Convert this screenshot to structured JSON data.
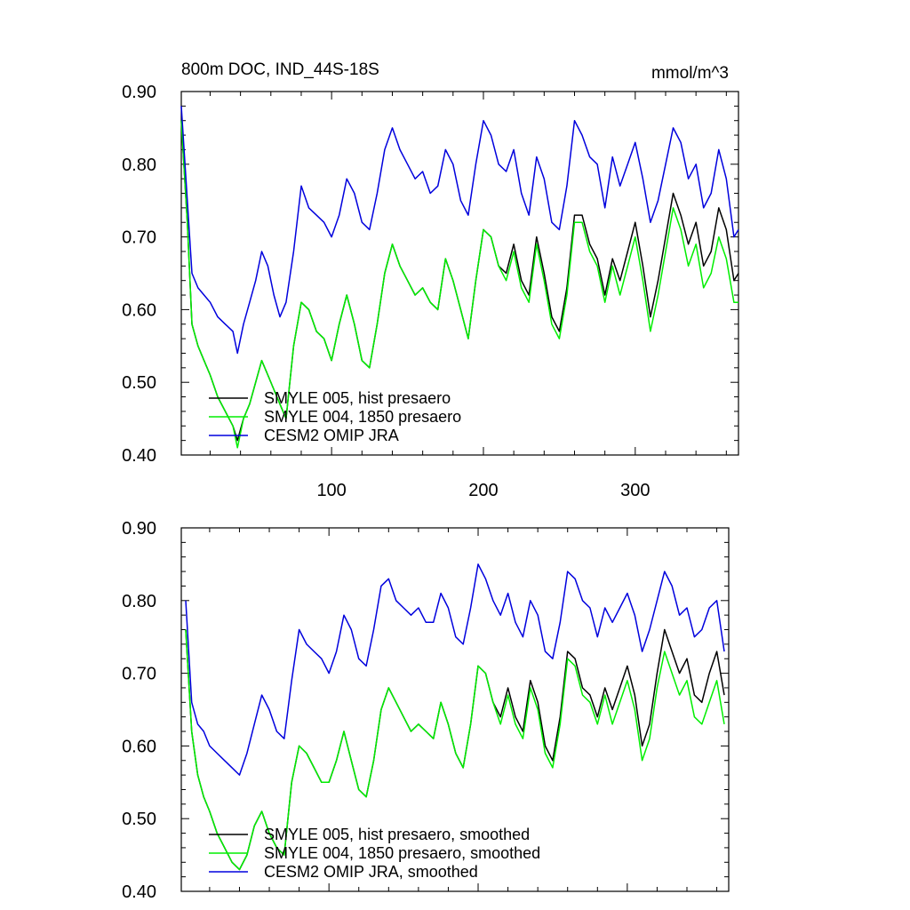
{
  "title_left": "800m DOC, IND_44S-18S",
  "title_right": "mmol/m^3",
  "colors": {
    "smyle005": "#000000",
    "smyle004": "#00ee00",
    "omip": "#0000dd"
  },
  "chart_data": [
    {
      "type": "line",
      "ylim": [
        0.4,
        0.9
      ],
      "xlim": [
        1,
        368
      ],
      "yticks": [
        "0.40",
        "0.50",
        "0.60",
        "0.70",
        "0.80",
        "0.90"
      ],
      "xticks": [
        "100",
        "200",
        "300"
      ],
      "legend_position": "lower-left",
      "series": [
        {
          "name": "SMYLE 005, hist presaero",
          "key": "smyle005",
          "x": [
            1,
            5,
            8,
            12,
            16,
            20,
            25,
            30,
            35,
            38,
            42,
            46,
            50,
            54,
            58,
            62,
            66,
            70,
            75,
            80,
            85,
            90,
            95,
            100,
            105,
            110,
            115,
            120,
            125,
            130,
            135,
            140,
            145,
            150,
            155,
            160,
            165,
            170,
            175,
            180,
            185,
            190,
            195,
            200,
            205,
            210,
            215,
            220,
            225,
            230,
            235,
            240,
            245,
            250,
            255,
            260,
            265,
            270,
            275,
            280,
            285,
            290,
            295,
            300,
            305,
            310,
            315,
            320,
            325,
            330,
            335,
            340,
            345,
            350,
            355,
            360,
            365,
            368
          ],
          "y": [
            0.86,
            0.72,
            0.58,
            0.55,
            0.53,
            0.51,
            0.48,
            0.46,
            0.44,
            0.42,
            0.45,
            0.47,
            0.5,
            0.53,
            0.51,
            0.49,
            0.47,
            0.45,
            0.55,
            0.61,
            0.6,
            0.57,
            0.56,
            0.53,
            0.58,
            0.62,
            0.58,
            0.53,
            0.52,
            0.58,
            0.65,
            0.69,
            0.66,
            0.64,
            0.62,
            0.63,
            0.61,
            0.6,
            0.67,
            0.64,
            0.6,
            0.56,
            0.64,
            0.71,
            0.7,
            0.66,
            0.65,
            0.69,
            0.64,
            0.62,
            0.7,
            0.65,
            0.59,
            0.57,
            0.63,
            0.73,
            0.73,
            0.69,
            0.67,
            0.62,
            0.67,
            0.64,
            0.68,
            0.72,
            0.66,
            0.59,
            0.64,
            0.7,
            0.76,
            0.73,
            0.69,
            0.72,
            0.66,
            0.68,
            0.74,
            0.71,
            0.64,
            0.65
          ]
        },
        {
          "name": "SMYLE 004, 1850 presaero",
          "key": "smyle004",
          "x": [
            1,
            5,
            8,
            12,
            16,
            20,
            25,
            30,
            35,
            38,
            42,
            46,
            50,
            54,
            58,
            62,
            66,
            70,
            75,
            80,
            85,
            90,
            95,
            100,
            105,
            110,
            115,
            120,
            125,
            130,
            135,
            140,
            145,
            150,
            155,
            160,
            165,
            170,
            175,
            180,
            185,
            190,
            195,
            200,
            205,
            210,
            215,
            220,
            225,
            230,
            235,
            240,
            245,
            250,
            255,
            260,
            265,
            270,
            275,
            280,
            285,
            290,
            295,
            300,
            305,
            310,
            315,
            320,
            325,
            330,
            335,
            340,
            345,
            350,
            355,
            360,
            365,
            368
          ],
          "y": [
            0.86,
            0.72,
            0.58,
            0.55,
            0.53,
            0.51,
            0.48,
            0.46,
            0.44,
            0.41,
            0.45,
            0.47,
            0.5,
            0.53,
            0.51,
            0.49,
            0.47,
            0.45,
            0.55,
            0.61,
            0.6,
            0.57,
            0.56,
            0.53,
            0.58,
            0.62,
            0.58,
            0.53,
            0.52,
            0.58,
            0.65,
            0.69,
            0.66,
            0.64,
            0.62,
            0.63,
            0.61,
            0.6,
            0.67,
            0.64,
            0.6,
            0.56,
            0.64,
            0.71,
            0.7,
            0.66,
            0.64,
            0.68,
            0.63,
            0.61,
            0.69,
            0.64,
            0.58,
            0.56,
            0.62,
            0.72,
            0.72,
            0.68,
            0.66,
            0.61,
            0.66,
            0.62,
            0.66,
            0.7,
            0.64,
            0.57,
            0.62,
            0.68,
            0.74,
            0.71,
            0.66,
            0.69,
            0.63,
            0.65,
            0.7,
            0.67,
            0.61,
            0.61
          ]
        },
        {
          "name": "CESM2 OMIP JRA",
          "key": "omip",
          "x": [
            1,
            5,
            8,
            12,
            16,
            20,
            25,
            30,
            35,
            38,
            42,
            46,
            50,
            54,
            58,
            62,
            66,
            70,
            75,
            80,
            85,
            90,
            95,
            100,
            105,
            110,
            115,
            120,
            125,
            130,
            135,
            140,
            145,
            150,
            155,
            160,
            165,
            170,
            175,
            180,
            185,
            190,
            195,
            200,
            205,
            210,
            215,
            220,
            225,
            230,
            235,
            240,
            245,
            250,
            255,
            260,
            265,
            270,
            275,
            280,
            285,
            290,
            295,
            300,
            305,
            310,
            315,
            320,
            325,
            330,
            335,
            340,
            345,
            350,
            355,
            360,
            365,
            368
          ],
          "y": [
            0.88,
            0.75,
            0.65,
            0.63,
            0.62,
            0.61,
            0.59,
            0.58,
            0.57,
            0.54,
            0.58,
            0.61,
            0.64,
            0.68,
            0.66,
            0.62,
            0.59,
            0.61,
            0.68,
            0.77,
            0.74,
            0.73,
            0.72,
            0.7,
            0.73,
            0.78,
            0.76,
            0.72,
            0.71,
            0.76,
            0.82,
            0.85,
            0.82,
            0.8,
            0.78,
            0.79,
            0.76,
            0.77,
            0.82,
            0.8,
            0.75,
            0.73,
            0.8,
            0.86,
            0.84,
            0.8,
            0.79,
            0.82,
            0.76,
            0.73,
            0.81,
            0.78,
            0.72,
            0.71,
            0.77,
            0.86,
            0.84,
            0.81,
            0.8,
            0.74,
            0.81,
            0.77,
            0.8,
            0.83,
            0.78,
            0.72,
            0.75,
            0.8,
            0.85,
            0.83,
            0.78,
            0.8,
            0.74,
            0.76,
            0.82,
            0.78,
            0.7,
            0.71
          ]
        }
      ]
    },
    {
      "type": "line",
      "ylim": [
        0.4,
        0.9
      ],
      "xlim": [
        1,
        368
      ],
      "yticks": [
        "0.40",
        "0.50",
        "0.60",
        "0.70",
        "0.80",
        "0.90"
      ],
      "xticks": [],
      "legend_position": "lower-left",
      "series": [
        {
          "name": "SMYLE 005, hist presaero, smoothed",
          "key": "smyle005",
          "x": [
            4,
            8,
            12,
            16,
            20,
            25,
            30,
            35,
            40,
            45,
            50,
            55,
            60,
            65,
            70,
            75,
            80,
            85,
            90,
            95,
            100,
            105,
            110,
            115,
            120,
            125,
            130,
            135,
            140,
            145,
            150,
            155,
            160,
            165,
            170,
            175,
            180,
            185,
            190,
            195,
            200,
            205,
            210,
            215,
            220,
            225,
            230,
            235,
            240,
            245,
            250,
            255,
            260,
            265,
            270,
            275,
            280,
            285,
            290,
            295,
            300,
            305,
            310,
            315,
            320,
            325,
            330,
            335,
            340,
            345,
            350,
            355,
            360,
            365
          ],
          "y": [
            0.76,
            0.62,
            0.56,
            0.53,
            0.51,
            0.48,
            0.46,
            0.44,
            0.43,
            0.45,
            0.49,
            0.51,
            0.48,
            0.46,
            0.45,
            0.55,
            0.6,
            0.59,
            0.57,
            0.55,
            0.55,
            0.58,
            0.62,
            0.58,
            0.54,
            0.53,
            0.58,
            0.65,
            0.68,
            0.66,
            0.64,
            0.62,
            0.63,
            0.62,
            0.61,
            0.66,
            0.63,
            0.59,
            0.57,
            0.63,
            0.71,
            0.7,
            0.66,
            0.64,
            0.68,
            0.64,
            0.62,
            0.69,
            0.66,
            0.6,
            0.58,
            0.64,
            0.73,
            0.72,
            0.68,
            0.67,
            0.64,
            0.68,
            0.65,
            0.68,
            0.71,
            0.67,
            0.6,
            0.63,
            0.7,
            0.76,
            0.73,
            0.7,
            0.72,
            0.67,
            0.66,
            0.7,
            0.73,
            0.67
          ]
        },
        {
          "name": "SMYLE 004, 1850 presaero, smoothed",
          "key": "smyle004",
          "x": [
            4,
            8,
            12,
            16,
            20,
            25,
            30,
            35,
            40,
            45,
            50,
            55,
            60,
            65,
            70,
            75,
            80,
            85,
            90,
            95,
            100,
            105,
            110,
            115,
            120,
            125,
            130,
            135,
            140,
            145,
            150,
            155,
            160,
            165,
            170,
            175,
            180,
            185,
            190,
            195,
            200,
            205,
            210,
            215,
            220,
            225,
            230,
            235,
            240,
            245,
            250,
            255,
            260,
            265,
            270,
            275,
            280,
            285,
            290,
            295,
            300,
            305,
            310,
            315,
            320,
            325,
            330,
            335,
            340,
            345,
            350,
            355,
            360,
            365
          ],
          "y": [
            0.76,
            0.62,
            0.56,
            0.53,
            0.51,
            0.48,
            0.46,
            0.44,
            0.43,
            0.45,
            0.49,
            0.51,
            0.48,
            0.46,
            0.45,
            0.55,
            0.6,
            0.59,
            0.57,
            0.55,
            0.55,
            0.58,
            0.62,
            0.58,
            0.54,
            0.53,
            0.58,
            0.65,
            0.68,
            0.66,
            0.64,
            0.62,
            0.63,
            0.62,
            0.61,
            0.66,
            0.63,
            0.59,
            0.57,
            0.63,
            0.71,
            0.7,
            0.66,
            0.63,
            0.67,
            0.63,
            0.61,
            0.68,
            0.65,
            0.59,
            0.57,
            0.63,
            0.72,
            0.71,
            0.67,
            0.66,
            0.63,
            0.67,
            0.63,
            0.66,
            0.69,
            0.65,
            0.58,
            0.61,
            0.68,
            0.73,
            0.7,
            0.67,
            0.69,
            0.64,
            0.63,
            0.66,
            0.69,
            0.63
          ]
        },
        {
          "name": "CESM2 OMIP JRA, smoothed",
          "key": "omip",
          "x": [
            4,
            8,
            12,
            16,
            20,
            25,
            30,
            35,
            40,
            45,
            50,
            55,
            60,
            65,
            70,
            75,
            80,
            85,
            90,
            95,
            100,
            105,
            110,
            115,
            120,
            125,
            130,
            135,
            140,
            145,
            150,
            155,
            160,
            165,
            170,
            175,
            180,
            185,
            190,
            195,
            200,
            205,
            210,
            215,
            220,
            225,
            230,
            235,
            240,
            245,
            250,
            255,
            260,
            265,
            270,
            275,
            280,
            285,
            290,
            295,
            300,
            305,
            310,
            315,
            320,
            325,
            330,
            335,
            340,
            345,
            350,
            355,
            360,
            365
          ],
          "y": [
            0.8,
            0.66,
            0.63,
            0.62,
            0.6,
            0.59,
            0.58,
            0.57,
            0.56,
            0.59,
            0.63,
            0.67,
            0.65,
            0.62,
            0.61,
            0.69,
            0.76,
            0.74,
            0.73,
            0.72,
            0.7,
            0.73,
            0.78,
            0.76,
            0.72,
            0.71,
            0.76,
            0.82,
            0.83,
            0.8,
            0.79,
            0.78,
            0.79,
            0.77,
            0.77,
            0.81,
            0.79,
            0.75,
            0.74,
            0.79,
            0.85,
            0.83,
            0.8,
            0.78,
            0.81,
            0.77,
            0.75,
            0.8,
            0.78,
            0.73,
            0.72,
            0.77,
            0.84,
            0.83,
            0.8,
            0.79,
            0.75,
            0.79,
            0.77,
            0.79,
            0.81,
            0.78,
            0.73,
            0.76,
            0.8,
            0.84,
            0.82,
            0.78,
            0.79,
            0.75,
            0.76,
            0.79,
            0.8,
            0.73
          ]
        }
      ]
    }
  ]
}
